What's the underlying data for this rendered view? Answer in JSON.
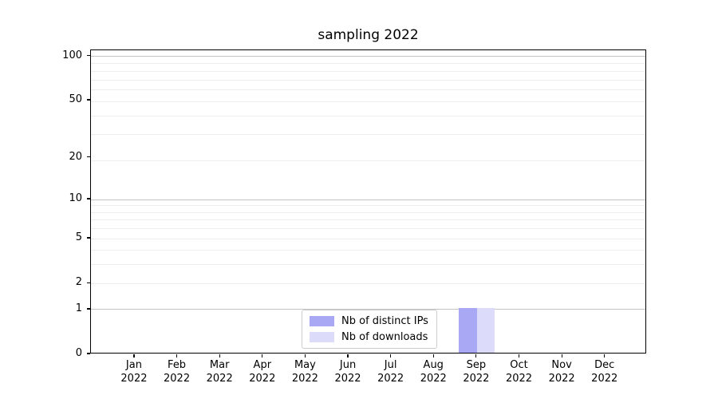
{
  "chart_data": {
    "type": "bar",
    "title": "sampling 2022",
    "months": [
      "Jan",
      "Feb",
      "Mar",
      "Apr",
      "May",
      "Jun",
      "Jul",
      "Aug",
      "Sep",
      "Oct",
      "Nov",
      "Dec"
    ],
    "year": "2022",
    "series": [
      {
        "name": "Nb of distinct IPs",
        "color": "#a8a8f4",
        "values": [
          0,
          0,
          0,
          0,
          0,
          0,
          0,
          0,
          1,
          0,
          0,
          0
        ]
      },
      {
        "name": "Nb of downloads",
        "color": "#dcdcfa",
        "values": [
          0,
          0,
          0,
          0,
          0,
          0,
          0,
          0,
          1,
          0,
          0,
          0
        ]
      }
    ],
    "yscale": "log1p",
    "ylim": [
      0,
      110
    ],
    "xlim": [
      -1.025,
      11.975
    ],
    "yticks": [
      0,
      1,
      2,
      5,
      10,
      20,
      50,
      100
    ],
    "gridlines": {
      "major": [
        1,
        10,
        100
      ],
      "minor": [
        2,
        3,
        4,
        5,
        6,
        7,
        8,
        9,
        19,
        29,
        39,
        49,
        59,
        69,
        79,
        89
      ]
    },
    "grid": true,
    "legend_position": "lower center",
    "xlabel": "",
    "ylabel": ""
  },
  "colors": {
    "grid_major": "#c4c4c4",
    "grid_minor": "#ededed",
    "spine": "#000000",
    "background": "#ffffff"
  }
}
